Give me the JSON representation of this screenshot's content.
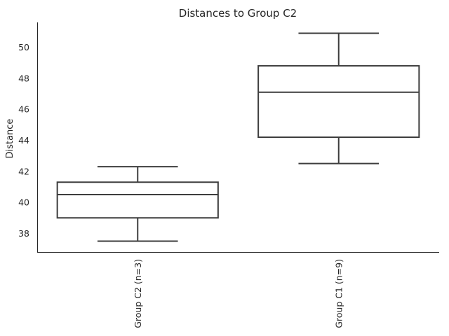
{
  "chart_data": {
    "type": "box",
    "title": "Distances to Group C2",
    "xlabel": "",
    "ylabel": "Distance",
    "ylim": [
      36.8,
      51.6
    ],
    "yticks": [
      38,
      40,
      42,
      44,
      46,
      48,
      50
    ],
    "grid": false,
    "categories": [
      "Group C2 (n=3)",
      "Group C1 (n=9)"
    ],
    "boxes": [
      {
        "category": "Group C2 (n=3)",
        "whisker_low": 37.5,
        "q1": 39.0,
        "median": 40.5,
        "q3": 41.3,
        "whisker_high": 42.3
      },
      {
        "category": "Group C1 (n=9)",
        "whisker_low": 42.5,
        "q1": 44.2,
        "median": 47.1,
        "q3": 48.8,
        "whisker_high": 50.9
      }
    ],
    "colors": {
      "box_edge": "#3d3d3d",
      "box_fill": "#ffffff",
      "text": "#262626",
      "background": "#ffffff"
    }
  }
}
